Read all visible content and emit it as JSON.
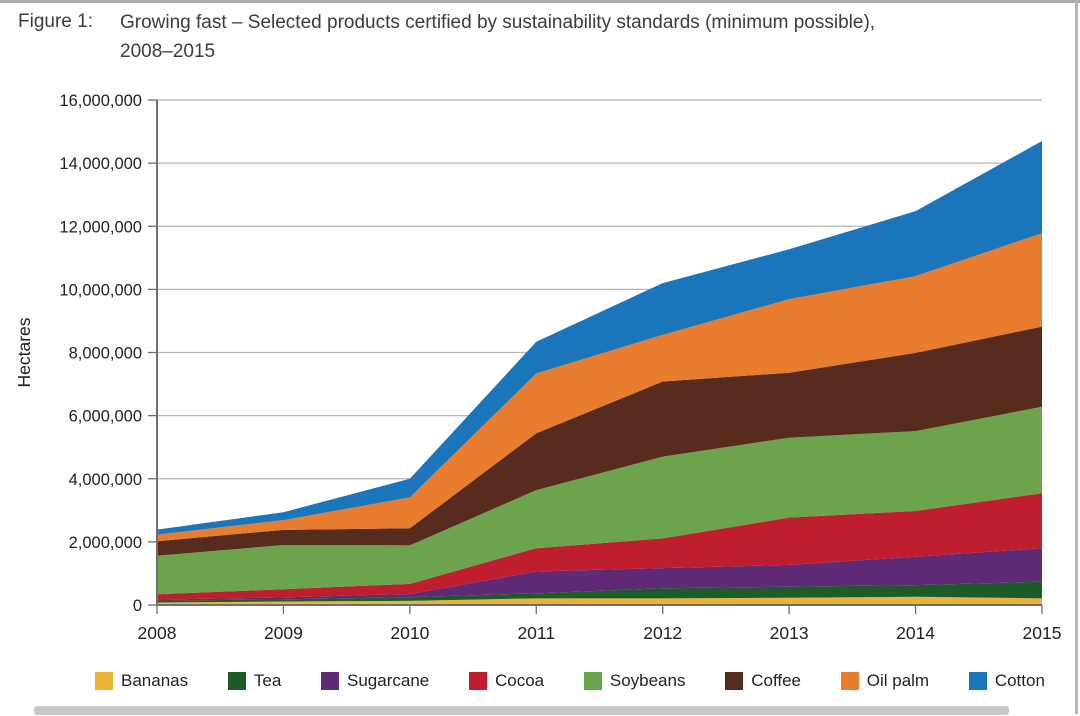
{
  "figure": {
    "label": "Figure 1:",
    "title_line1": "Growing fast – Selected products certified by sustainability standards (minimum possible),",
    "title_line2": "2008–2015"
  },
  "chart_data": {
    "type": "area",
    "stacked": true,
    "title": "Growing fast – Selected products certified by sustainability standards (minimum possible), 2008–2015",
    "xlabel": "",
    "ylabel": "Hectares",
    "x": [
      2008,
      2009,
      2010,
      2011,
      2012,
      2013,
      2014,
      2015
    ],
    "x_labels": [
      "2008",
      "2009",
      "2010",
      "2011",
      "2012",
      "2013",
      "2014",
      "2015"
    ],
    "ylim": [
      0,
      16000000
    ],
    "ytick_step": 2000000,
    "ytick_labels": [
      "0",
      "2,000,000",
      "4,000,000",
      "6,000,000",
      "8,000,000",
      "10,000,000",
      "12,000,000",
      "14,000,000",
      "16,000,000"
    ],
    "grid": true,
    "legend_position": "bottom",
    "series": [
      {
        "name": "Bananas",
        "color": "#EAB335",
        "values": [
          80000,
          110000,
          130000,
          210000,
          210000,
          230000,
          260000,
          210000
        ]
      },
      {
        "name": "Tea",
        "color": "#1C5C29",
        "values": [
          60000,
          70000,
          120000,
          160000,
          320000,
          350000,
          370000,
          530000
        ]
      },
      {
        "name": "Sugarcane",
        "color": "#5F2B76",
        "values": [
          30000,
          60000,
          100000,
          690000,
          640000,
          690000,
          900000,
          1060000
        ]
      },
      {
        "name": "Cocoa",
        "color": "#BE1E2D",
        "values": [
          170000,
          260000,
          320000,
          740000,
          940000,
          1500000,
          1450000,
          1740000
        ]
      },
      {
        "name": "Soybeans",
        "color": "#6CA34D",
        "values": [
          1220000,
          1400000,
          1220000,
          1840000,
          2590000,
          2530000,
          2530000,
          2740000
        ]
      },
      {
        "name": "Coffee",
        "color": "#572C1F",
        "values": [
          460000,
          480000,
          540000,
          1800000,
          2380000,
          2060000,
          2480000,
          2540000
        ]
      },
      {
        "name": "Oil palm",
        "color": "#E87D2F",
        "values": [
          210000,
          310000,
          980000,
          1900000,
          1480000,
          2330000,
          2430000,
          2960000
        ]
      },
      {
        "name": "Cotton",
        "color": "#1B75BB",
        "values": [
          160000,
          250000,
          590000,
          1000000,
          1640000,
          1580000,
          2060000,
          2920000
        ]
      }
    ],
    "colors": {
      "gridline": "#b5b5b5",
      "axis": "#6d6e71",
      "tick_text": "#231f20"
    }
  }
}
